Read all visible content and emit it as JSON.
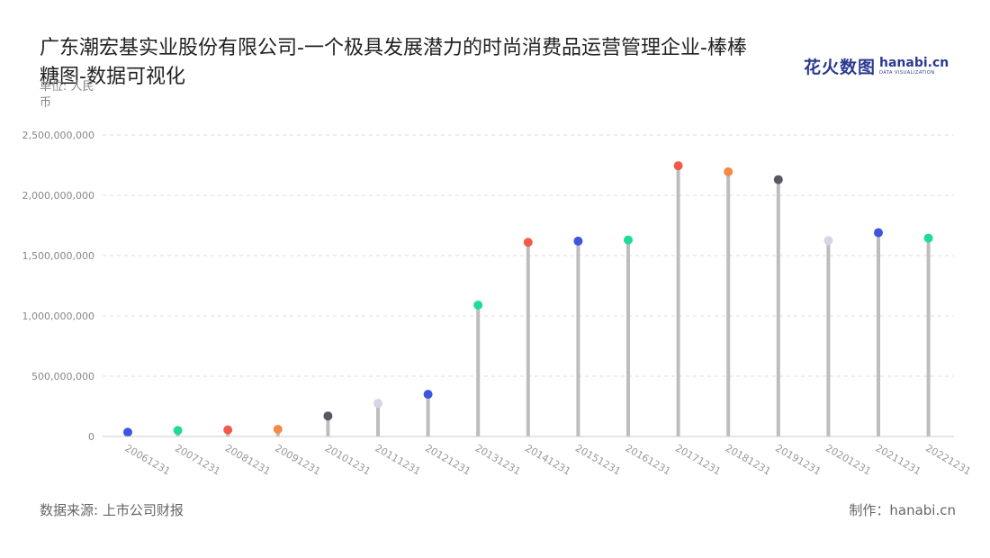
{
  "title": "广东潮宏基实业股份有限公司-一个极具发展潜力的时尚消费品运营管理企业-棒棒糖图-数据可视化",
  "unit": "单位: 人民币",
  "source": "数据来源: 上市公司财报",
  "maker": "制作：hanabi.cn",
  "logo": {
    "cn": "花火数图",
    "en": "hanabi.cn",
    "sub": "DATA VISUALIZATION"
  },
  "chart_data": {
    "type": "lollipop",
    "categories": [
      "20061231",
      "20071231",
      "20081231",
      "20091231",
      "20101231",
      "20111231",
      "20121231",
      "20131231",
      "20141231",
      "20151231",
      "20161231",
      "20171231",
      "20181231",
      "20191231",
      "20201231",
      "20211231",
      "20221231"
    ],
    "values": [
      35000000,
      50000000,
      55000000,
      60000000,
      170000000,
      275000000,
      350000000,
      1090000000,
      1610000000,
      1620000000,
      1630000000,
      2245000000,
      2195000000,
      2130000000,
      1625000000,
      1690000000,
      1645000000
    ],
    "colors": [
      "#3e55e0",
      "#1fdc93",
      "#f25a4a",
      "#f5894a",
      "#585863",
      "#d5d6e3",
      "#3e55e0",
      "#1fdc93",
      "#f25a4a",
      "#3e55e0",
      "#1fdc93",
      "#f25a4a",
      "#f5894a",
      "#585863",
      "#d5d6e3",
      "#3e55e0",
      "#1fdc93"
    ],
    "yticks": [
      "0",
      "500,000,000",
      "1,000,000,000",
      "1,500,000,000",
      "2,000,000,000",
      "2,500,000,000"
    ],
    "ylim": [
      0,
      2500000000
    ],
    "stem_color": "#bdbdbd",
    "grid": true
  }
}
